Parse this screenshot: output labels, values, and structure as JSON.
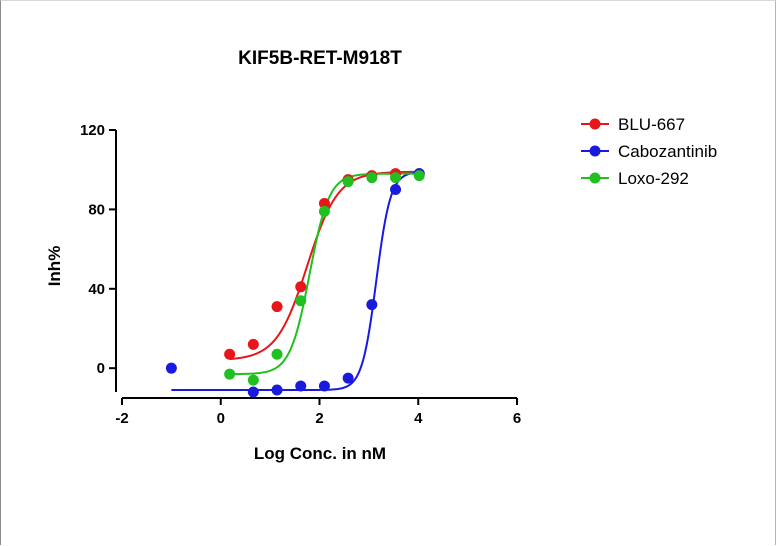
{
  "chart_data": {
    "type": "scatter",
    "title": "KIF5B-RET-M918T",
    "xlabel": "Log Conc. in nM",
    "ylabel": "Inh%",
    "xlim": [
      -2,
      6
    ],
    "ylim": [
      -12,
      120
    ],
    "xticks": [
      -2,
      0,
      2,
      4,
      6
    ],
    "yticks": [
      0,
      40,
      80,
      120
    ],
    "xtick_labels": [
      "-2",
      "0",
      "2",
      "4",
      "6"
    ],
    "ytick_labels": [
      "0",
      "40",
      "80",
      "120"
    ],
    "legend_position": "top-right",
    "series": [
      {
        "name": "BLU-667",
        "color": "#e8161b",
        "x": [
          0.18,
          0.66,
          1.14,
          1.62,
          2.1,
          2.58,
          3.06,
          3.54,
          4.02
        ],
        "y": [
          7,
          12,
          31,
          41,
          83,
          95,
          97,
          98,
          98
        ],
        "fit": {
          "bottom": 4,
          "top": 99,
          "logEC50": 1.75,
          "hill": 1.4
        }
      },
      {
        "name": "Cabozantinib",
        "color": "#1a1adf",
        "x": [
          -1.0,
          0.66,
          1.14,
          1.62,
          2.1,
          2.58,
          3.06,
          3.54,
          4.02
        ],
        "y": [
          0,
          -12,
          -11,
          -9,
          -9,
          -5,
          32,
          90,
          98
        ],
        "fit": {
          "bottom": -11,
          "top": 99,
          "logEC50": 3.15,
          "hill": 3.0
        }
      },
      {
        "name": "Loxo-292",
        "color": "#1fc01f",
        "x": [
          0.18,
          0.66,
          1.14,
          1.62,
          2.1,
          2.58,
          3.06,
          3.54,
          4.02
        ],
        "y": [
          -3,
          -6,
          7,
          34,
          79,
          94,
          96,
          96,
          97
        ],
        "fit": {
          "bottom": -3,
          "top": 98,
          "logEC50": 1.8,
          "hill": 2.2
        }
      }
    ]
  }
}
